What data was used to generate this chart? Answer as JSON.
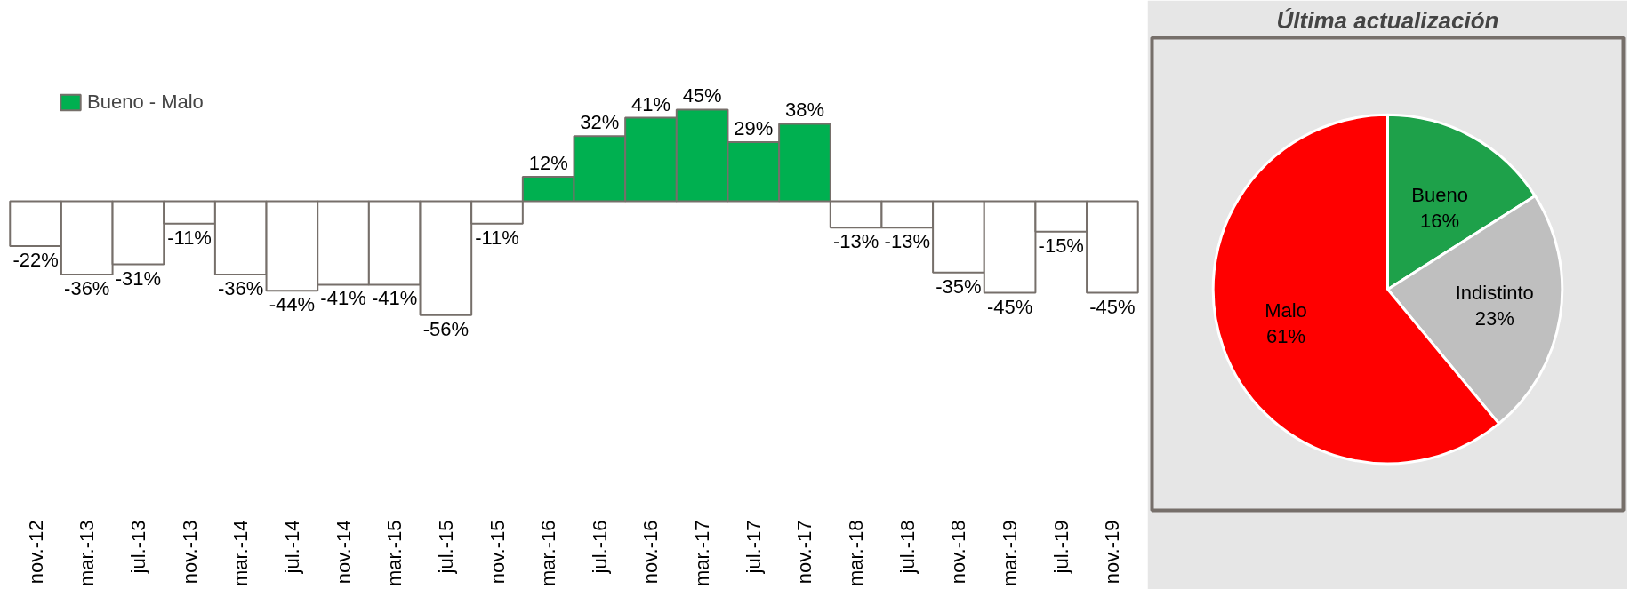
{
  "chart_data": [
    {
      "type": "bar",
      "categories": [
        "nov.-12",
        "mar.-13",
        "jul.-13",
        "nov.-13",
        "mar.-14",
        "jul.-14",
        "nov.-14",
        "mar.-15",
        "jul.-15",
        "nov.-15",
        "mar.-16",
        "jul.-16",
        "nov.-16",
        "mar.-17",
        "jul.-17",
        "nov.-17",
        "mar.-18",
        "jul.-18",
        "nov.-18",
        "mar.-19",
        "jul.-19",
        "nov.-19"
      ],
      "series": [
        {
          "name": "Bueno - Malo",
          "color": "#00b050",
          "colors": [
            "#ffffff",
            "#ffffff",
            "#ffffff",
            "#ffffff",
            "#ffffff",
            "#ffffff",
            "#ffffff",
            "#ffffff",
            "#ffffff",
            "#ffffff",
            "#00b050",
            "#00b050",
            "#00b050",
            "#00b050",
            "#00b050",
            "#00b050",
            "#ffffff",
            "#ffffff",
            "#ffffff",
            "#ffffff",
            "#ffffff",
            "#ffffff"
          ],
          "values": [
            -22,
            -36,
            -31,
            -11,
            -36,
            -44,
            -41,
            -41,
            -56,
            -11,
            12,
            32,
            41,
            45,
            29,
            38,
            -13,
            -13,
            -35,
            -45,
            -15,
            -45
          ],
          "value_labels": [
            "-22%",
            "-36%",
            "-31%",
            "-11%",
            "-36%",
            "-44%",
            "-41%",
            "-41%",
            "-56%",
            "-11%",
            "12%",
            "32%",
            "41%",
            "45%",
            "29%",
            "38%",
            "-13%",
            "-13%",
            "-35%",
            "-45%",
            "-15%",
            "-45%"
          ]
        }
      ],
      "legend": "top left",
      "grid": false
    },
    {
      "type": "pie",
      "title": "Última actualización",
      "categories": [
        "Bueno",
        "Indistinto",
        "Malo"
      ],
      "values": [
        16,
        23,
        61
      ],
      "colors": [
        "#1ea14a",
        "#bfbfbf",
        "#ff0000"
      ],
      "value_labels": [
        "16%",
        "23%",
        "61%"
      ]
    }
  ]
}
